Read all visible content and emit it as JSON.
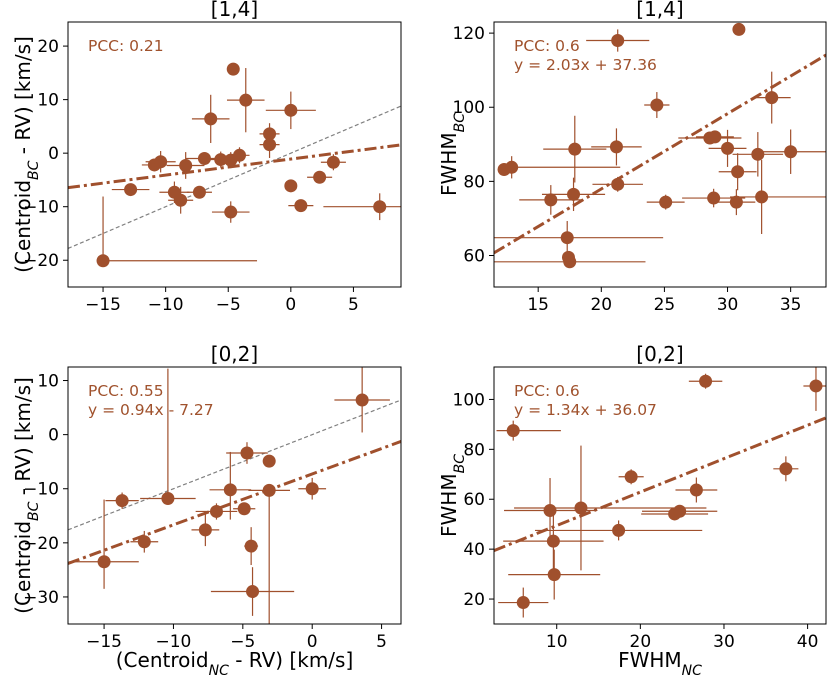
{
  "chart_data": [
    {
      "type": "scatter",
      "title": "[1,4]",
      "xlabel": "",
      "ylabel": "(Centroid_BC - RV) [km/s]",
      "xlim": [
        -17.8,
        8.8
      ],
      "ylim": [
        -25,
        24.5
      ],
      "xticks": [
        -15,
        -10,
        -5,
        0,
        5
      ],
      "xtick_labels": [
        "−15",
        "−10",
        "−5",
        "0",
        "5"
      ],
      "yticks": [
        -20,
        -10,
        0,
        10,
        20
      ],
      "ytick_labels": [
        "−20",
        "−10",
        "0",
        "10",
        "20"
      ],
      "annotation": "PCC: 0.21",
      "fit": {
        "slope": 0.3,
        "intercept": -1.1,
        "label": ""
      },
      "identity_line": true,
      "points": [
        {
          "x": -15.0,
          "y": -20.1,
          "xerr": [
            0,
            12.3
          ],
          "yerr": [
            0,
            12.0
          ]
        },
        {
          "x": -12.8,
          "y": -6.8,
          "xerr": [
            1.5,
            1.5
          ],
          "yerr": [
            0,
            0
          ]
        },
        {
          "x": -10.9,
          "y": -2.2,
          "xerr": [
            1.0,
            1.0
          ],
          "yerr": [
            0,
            0
          ]
        },
        {
          "x": -10.4,
          "y": -1.6,
          "xerr": [
            1.2,
            1.2
          ],
          "yerr": [
            2.0,
            2.0
          ]
        },
        {
          "x": -9.3,
          "y": -7.3,
          "xerr": [
            1.2,
            1.2
          ],
          "yerr": [
            2.0,
            2.0
          ]
        },
        {
          "x": -8.8,
          "y": -8.8,
          "xerr": [
            1.0,
            1.0
          ],
          "yerr": [
            2.5,
            2.5
          ]
        },
        {
          "x": -8.4,
          "y": -2.3,
          "xerr": [
            1.5,
            1.5
          ],
          "yerr": [
            2.5,
            2.5
          ]
        },
        {
          "x": -7.3,
          "y": -7.3,
          "xerr": [
            1.0,
            1.0
          ],
          "yerr": [
            0,
            0
          ]
        },
        {
          "x": -6.9,
          "y": -1.0,
          "xerr": [
            1.5,
            1.5
          ],
          "yerr": [
            0,
            0
          ]
        },
        {
          "x": -6.4,
          "y": 6.4,
          "xerr": [
            1.5,
            1.5
          ],
          "yerr": [
            4.5,
            4.5
          ]
        },
        {
          "x": -5.6,
          "y": -1.2,
          "xerr": [
            1.5,
            1.5
          ],
          "yerr": [
            1.5,
            1.5
          ]
        },
        {
          "x": -4.8,
          "y": -1.3,
          "xerr": [
            1.0,
            1.0
          ],
          "yerr": [
            1.5,
            1.5
          ]
        },
        {
          "x": -4.8,
          "y": -11.0,
          "xerr": [
            1.5,
            1.5
          ],
          "yerr": [
            2.0,
            2.0
          ]
        },
        {
          "x": -4.6,
          "y": 15.7,
          "xerr": [
            0,
            0
          ],
          "yerr": [
            0,
            0
          ]
        },
        {
          "x": -4.1,
          "y": -0.4,
          "xerr": [
            0.8,
            0.8
          ],
          "yerr": [
            1.5,
            1.5
          ]
        },
        {
          "x": -3.6,
          "y": 9.9,
          "xerr": [
            1.5,
            1.5
          ],
          "yerr": [
            6.0,
            6.0
          ]
        },
        {
          "x": -1.7,
          "y": 3.6,
          "xerr": [
            0.8,
            0.8
          ],
          "yerr": [
            2.0,
            2.0
          ]
        },
        {
          "x": -1.7,
          "y": 1.6,
          "xerr": [
            0.8,
            0.8
          ],
          "yerr": [
            2.5,
            2.5
          ]
        },
        {
          "x": 0.0,
          "y": 8.0,
          "xerr": [
            2.0,
            2.0
          ],
          "yerr": [
            3.5,
            3.5
          ]
        },
        {
          "x": 0.0,
          "y": -6.1,
          "xerr": [
            0,
            0
          ],
          "yerr": [
            0,
            0
          ]
        },
        {
          "x": 0.8,
          "y": -9.8,
          "xerr": [
            1.0,
            1.0
          ],
          "yerr": [
            0,
            0
          ]
        },
        {
          "x": 2.3,
          "y": -4.5,
          "xerr": [
            1.0,
            1.0
          ],
          "yerr": [
            1.0,
            1.0
          ]
        },
        {
          "x": 3.4,
          "y": -1.7,
          "xerr": [
            1.0,
            1.0
          ],
          "yerr": [
            1.5,
            1.5
          ]
        },
        {
          "x": 7.1,
          "y": -10.0,
          "xerr": [
            4.5,
            4.5
          ],
          "yerr": [
            2.5,
            2.5
          ]
        }
      ]
    },
    {
      "type": "scatter",
      "title": "[1,4]",
      "xlabel": "",
      "ylabel": "FWHM_BC",
      "xlim": [
        11.5,
        37.8
      ],
      "ylim": [
        51.5,
        123
      ],
      "xticks": [
        15,
        20,
        25,
        30,
        35
      ],
      "xtick_labels": [
        "15",
        "20",
        "25",
        "30",
        "35"
      ],
      "yticks": [
        60,
        80,
        100,
        120
      ],
      "ytick_labels": [
        "60",
        "80",
        "100",
        "120"
      ],
      "annotation": "PCC: 0.6",
      "fit": {
        "slope": 2.03,
        "intercept": 37.36,
        "label": "y = 2.03x + 37.36"
      },
      "identity_line": false,
      "points": [
        {
          "x": 12.3,
          "y": 83.2,
          "xerr": [
            0.5,
            0.5
          ],
          "yerr": [
            1.5,
            1.5
          ]
        },
        {
          "x": 12.9,
          "y": 83.8,
          "xerr": [
            0,
            8.6
          ],
          "yerr": [
            3.0,
            3.0
          ]
        },
        {
          "x": 16.0,
          "y": 75.0,
          "xerr": [
            2.5,
            2.5
          ],
          "yerr": [
            4.0,
            4.0
          ]
        },
        {
          "x": 17.3,
          "y": 64.8,
          "xerr": [
            6.0,
            7.6
          ],
          "yerr": [
            4.5,
            4.5
          ]
        },
        {
          "x": 17.4,
          "y": 59.5,
          "xerr": [
            0.5,
            0.5
          ],
          "yerr": [
            1.5,
            1.5
          ]
        },
        {
          "x": 17.5,
          "y": 58.3,
          "xerr": [
            6.0,
            6.0
          ],
          "yerr": [
            0,
            0
          ]
        },
        {
          "x": 17.8,
          "y": 76.5,
          "xerr": [
            2.5,
            2.5
          ],
          "yerr": [
            4.5,
            4.5
          ]
        },
        {
          "x": 17.9,
          "y": 88.7,
          "xerr": [
            2.5,
            2.5
          ],
          "yerr": [
            9.0,
            9.0
          ]
        },
        {
          "x": 21.2,
          "y": 89.3,
          "xerr": [
            2.0,
            2.0
          ],
          "yerr": [
            5.0,
            5.0
          ]
        },
        {
          "x": 21.3,
          "y": 79.2,
          "xerr": [
            2.0,
            2.0
          ],
          "yerr": [
            2.0,
            2.0
          ]
        },
        {
          "x": 21.3,
          "y": 118.0,
          "xerr": [
            2.5,
            2.5
          ],
          "yerr": [
            3.0,
            3.0
          ]
        },
        {
          "x": 24.4,
          "y": 100.6,
          "xerr": [
            1.0,
            1.0
          ],
          "yerr": [
            3.5,
            3.5
          ]
        },
        {
          "x": 25.1,
          "y": 74.4,
          "xerr": [
            1.5,
            1.5
          ],
          "yerr": [
            2.0,
            2.0
          ]
        },
        {
          "x": 28.6,
          "y": 91.7,
          "xerr": [
            2.5,
            2.5
          ],
          "yerr": [
            0,
            0
          ]
        },
        {
          "x": 29.0,
          "y": 92.0,
          "xerr": [
            1.5,
            1.5
          ],
          "yerr": [
            0,
            0
          ]
        },
        {
          "x": 28.9,
          "y": 75.5,
          "xerr": [
            2.5,
            2.5
          ],
          "yerr": [
            2.5,
            2.5
          ]
        },
        {
          "x": 30.0,
          "y": 88.9,
          "xerr": [
            1.5,
            1.5
          ],
          "yerr": [
            5.0,
            5.0
          ]
        },
        {
          "x": 30.7,
          "y": 74.4,
          "xerr": [
            1.5,
            1.5
          ],
          "yerr": [
            3.5,
            3.5
          ]
        },
        {
          "x": 30.8,
          "y": 82.6,
          "xerr": [
            1.5,
            1.5
          ],
          "yerr": [
            5.0,
            5.0
          ]
        },
        {
          "x": 30.9,
          "y": 121.0,
          "xerr": [
            0,
            0
          ],
          "yerr": [
            0,
            0
          ]
        },
        {
          "x": 32.4,
          "y": 87.3,
          "xerr": [
            2.0,
            2.0
          ],
          "yerr": [
            6.0,
            6.0
          ]
        },
        {
          "x": 32.7,
          "y": 75.8,
          "xerr": [
            2.5,
            5.1
          ],
          "yerr": [
            10.0,
            10.0
          ]
        },
        {
          "x": 33.5,
          "y": 102.6,
          "xerr": [
            1.5,
            1.5
          ],
          "yerr": [
            7.0,
            7.0
          ]
        },
        {
          "x": 35.0,
          "y": 88.0,
          "xerr": [
            2.5,
            2.8
          ],
          "yerr": [
            6.0,
            6.0
          ]
        }
      ]
    },
    {
      "type": "scatter",
      "title": "[0,2]",
      "xlabel": "(Centroid_NC - RV) [km/s]",
      "ylabel": "(Centroid_BC - RV) [km/s]",
      "xlim": [
        -17.6,
        6.4
      ],
      "ylim": [
        -35,
        12.5
      ],
      "xticks": [
        -15,
        -10,
        -5,
        0,
        5
      ],
      "xtick_labels": [
        "−15",
        "−10",
        "−5",
        "0",
        "5"
      ],
      "yticks": [
        -30,
        -20,
        -10,
        0,
        10
      ],
      "ytick_labels": [
        "−30",
        "−20",
        "−10",
        "0",
        "10"
      ],
      "annotation": "PCC: 0.55",
      "fit": {
        "slope": 0.94,
        "intercept": -7.27,
        "label": "y = 0.94x - 7.27"
      },
      "identity_line": true,
      "points": [
        {
          "x": -15.0,
          "y": -23.5,
          "xerr": [
            2.5,
            2.5
          ],
          "yerr": [
            5.0,
            11.5
          ]
        },
        {
          "x": -13.7,
          "y": -12.2,
          "xerr": [
            1.2,
            1.2
          ],
          "yerr": [
            1.5,
            1.5
          ]
        },
        {
          "x": -12.1,
          "y": -19.8,
          "xerr": [
            1.0,
            1.0
          ],
          "yerr": [
            2.0,
            2.0
          ]
        },
        {
          "x": -10.4,
          "y": -11.8,
          "xerr": [
            2.0,
            2.0
          ],
          "yerr": [
            0,
            24.0
          ]
        },
        {
          "x": -7.7,
          "y": -17.6,
          "xerr": [
            1.0,
            1.0
          ],
          "yerr": [
            3.0,
            3.0
          ]
        },
        {
          "x": -6.9,
          "y": -14.2,
          "xerr": [
            1.5,
            1.5
          ],
          "yerr": [
            1.5,
            1.5
          ]
        },
        {
          "x": -5.9,
          "y": -10.2,
          "xerr": [
            1.5,
            1.5
          ],
          "yerr": [
            5.5,
            7.0
          ]
        },
        {
          "x": -4.7,
          "y": -3.4,
          "xerr": [
            1.5,
            1.5
          ],
          "yerr": [
            2.0,
            2.0
          ]
        },
        {
          "x": -4.9,
          "y": -13.7,
          "xerr": [
            0.8,
            0.8
          ],
          "yerr": [
            0,
            0
          ]
        },
        {
          "x": -4.4,
          "y": -20.6,
          "xerr": [
            0.5,
            0.5
          ],
          "yerr": [
            3.5,
            3.5
          ]
        },
        {
          "x": -4.3,
          "y": -29.0,
          "xerr": [
            3.0,
            3.0
          ],
          "yerr": [
            4.5,
            4.5
          ]
        },
        {
          "x": -3.1,
          "y": -4.9,
          "xerr": [
            0,
            0
          ],
          "yerr": [
            0,
            0
          ]
        },
        {
          "x": -3.1,
          "y": -10.3,
          "xerr": [
            1.5,
            1.5
          ],
          "yerr": [
            25.0,
            0
          ]
        },
        {
          "x": 0.0,
          "y": -10.0,
          "xerr": [
            1.0,
            1.0
          ],
          "yerr": [
            2.0,
            2.0
          ]
        },
        {
          "x": 3.6,
          "y": 6.4,
          "xerr": [
            2.0,
            2.0
          ],
          "yerr": [
            6.0,
            6.0
          ]
        }
      ]
    },
    {
      "type": "scatter",
      "title": "[0,2]",
      "xlabel": "FWHM_NC",
      "ylabel": "FWHM_BC",
      "xlim": [
        2.5,
        42.2
      ],
      "ylim": [
        10,
        113
      ],
      "xticks": [
        10,
        20,
        30,
        40
      ],
      "xtick_labels": [
        "10",
        "20",
        "30",
        "40"
      ],
      "yticks": [
        20,
        40,
        60,
        80,
        100
      ],
      "ytick_labels": [
        "20",
        "40",
        "60",
        "80",
        "100"
      ],
      "annotation": "PCC: 0.6",
      "fit": {
        "slope": 1.34,
        "intercept": 36.07,
        "label": "y = 1.34x + 36.07"
      },
      "identity_line": false,
      "points": [
        {
          "x": 4.8,
          "y": 87.5,
          "xerr": [
            2.0,
            5.7
          ],
          "yerr": [
            4.0,
            4.0
          ]
        },
        {
          "x": 6.0,
          "y": 18.6,
          "xerr": [
            3.0,
            3.0
          ],
          "yerr": [
            6.0,
            6.0
          ]
        },
        {
          "x": 9.2,
          "y": 55.5,
          "xerr": [
            5.5,
            5.5
          ],
          "yerr": [
            13.0,
            13.0
          ]
        },
        {
          "x": 9.6,
          "y": 43.2,
          "xerr": [
            6.0,
            6.0
          ],
          "yerr": [
            13.0,
            13.0
          ]
        },
        {
          "x": 9.7,
          "y": 29.8,
          "xerr": [
            5.5,
            5.5
          ],
          "yerr": [
            10.0,
            10.0
          ]
        },
        {
          "x": 12.9,
          "y": 56.5,
          "xerr": [
            8.0,
            15.0
          ],
          "yerr": [
            25.0,
            25.0
          ]
        },
        {
          "x": 17.4,
          "y": 47.5,
          "xerr": [
            10.0,
            10.0
          ],
          "yerr": [
            4.0,
            4.0
          ]
        },
        {
          "x": 18.9,
          "y": 69.0,
          "xerr": [
            1.5,
            1.5
          ],
          "yerr": [
            3.0,
            3.0
          ]
        },
        {
          "x": 24.1,
          "y": 54.1,
          "xerr": [
            4.0,
            4.0
          ],
          "yerr": [
            0,
            0
          ]
        },
        {
          "x": 24.7,
          "y": 55.2,
          "xerr": [
            4.5,
            4.5
          ],
          "yerr": [
            0,
            0
          ]
        },
        {
          "x": 26.7,
          "y": 63.7,
          "xerr": [
            2.5,
            2.5
          ],
          "yerr": [
            5.0,
            5.0
          ]
        },
        {
          "x": 27.8,
          "y": 107.3,
          "xerr": [
            2.0,
            2.0
          ],
          "yerr": [
            3.0,
            3.0
          ]
        },
        {
          "x": 37.4,
          "y": 72.2,
          "xerr": [
            1.5,
            1.5
          ],
          "yerr": [
            5.0,
            5.0
          ]
        },
        {
          "x": 41.0,
          "y": 105.4,
          "xerr": [
            1.5,
            1.5
          ],
          "yerr": [
            10.0,
            10.0
          ]
        }
      ]
    }
  ],
  "colors": {
    "marker": "#A0502D",
    "fit_line": "#A0502D",
    "identity_line": "#808080",
    "annotation": "#A0522D",
    "axis": "#000000"
  }
}
